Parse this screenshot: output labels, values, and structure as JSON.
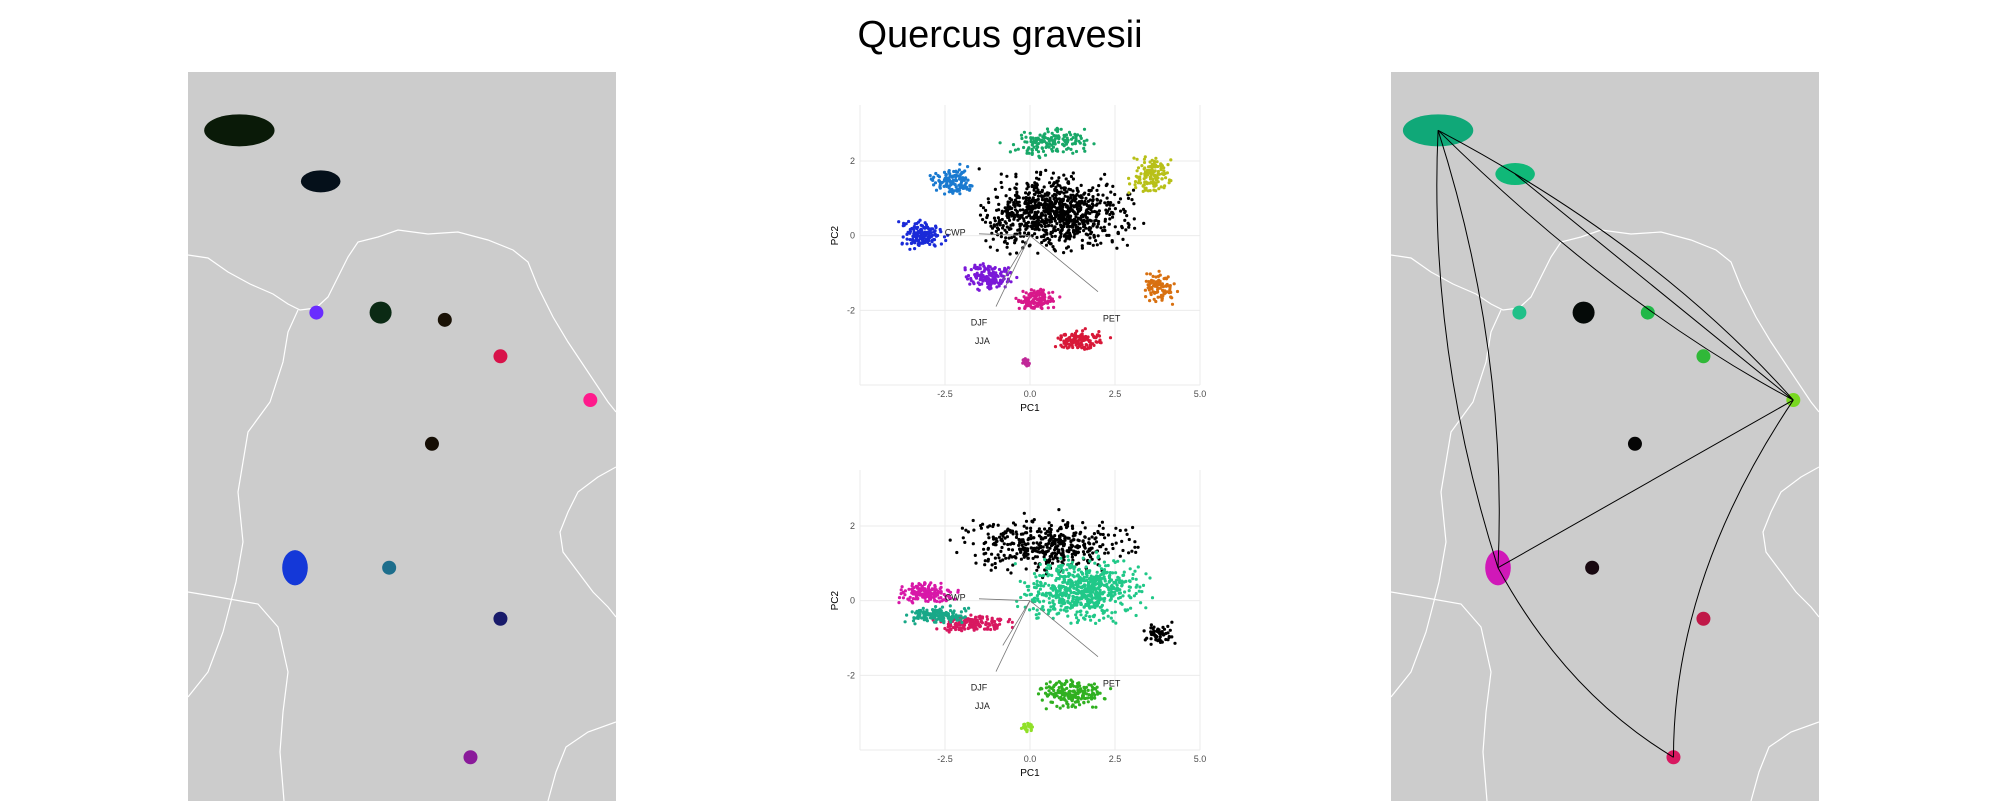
{
  "title": "Quercus gravesii",
  "colors": {
    "map_background": "#cccccc",
    "map_borders": "#ffffff",
    "plot_grid": "#ebebeb",
    "hull_line": "#000000"
  },
  "chart_data": [
    {
      "type": "map",
      "panel": "left",
      "description_colors": "RGB-coded climate colors per occurrence region",
      "sites": [
        {
          "lon": 0.12,
          "lat": 0.08,
          "color": "#0a1a08",
          "size": "large"
        },
        {
          "lon": 0.31,
          "lat": 0.15,
          "color": "#05101a",
          "size": "medium"
        },
        {
          "lon": 0.3,
          "lat": 0.33,
          "color": "#6a2cff",
          "size": "small"
        },
        {
          "lon": 0.45,
          "lat": 0.33,
          "color": "#0b2a14",
          "size": "medium"
        },
        {
          "lon": 0.6,
          "lat": 0.34,
          "color": "#1a1206",
          "size": "small"
        },
        {
          "lon": 0.73,
          "lat": 0.39,
          "color": "#d8124a",
          "size": "small"
        },
        {
          "lon": 0.94,
          "lat": 0.45,
          "color": "#ff1a8c",
          "size": "small"
        },
        {
          "lon": 0.57,
          "lat": 0.51,
          "color": "#150d04",
          "size": "small"
        },
        {
          "lon": 0.25,
          "lat": 0.68,
          "color": "#1438d8",
          "size": "large"
        },
        {
          "lon": 0.47,
          "lat": 0.68,
          "color": "#1d6e8c",
          "size": "small"
        },
        {
          "lon": 0.73,
          "lat": 0.75,
          "color": "#181a6a",
          "size": "small"
        },
        {
          "lon": 0.66,
          "lat": 0.94,
          "color": "#8a1a9a",
          "size": "small"
        }
      ]
    },
    {
      "type": "scatter",
      "panel": "pca-top",
      "xlabel": "PC1",
      "ylabel": "PC2",
      "xlim": [
        -5,
        5
      ],
      "ylim": [
        -4,
        3.5
      ],
      "xticks": [
        "-2.5",
        "0.0",
        "2.5",
        "5.0"
      ],
      "yticks": [
        "2",
        "0",
        "-2"
      ],
      "arrow_labels": [
        "CWP",
        "DJF",
        "JJA",
        "PET"
      ],
      "grid": true,
      "point_clusters": [
        {
          "cx": 0.8,
          "cy": 0.6,
          "rx": 2.8,
          "ry": 1.3,
          "color": "#000000",
          "n": 900
        },
        {
          "cx": -3.2,
          "cy": 0.0,
          "rx": 0.9,
          "ry": 0.5,
          "color": "#1a2ad8",
          "n": 150
        },
        {
          "cx": -2.3,
          "cy": 1.5,
          "rx": 0.8,
          "ry": 0.5,
          "color": "#1a7ad0",
          "n": 120
        },
        {
          "cx": -1.2,
          "cy": -1.1,
          "rx": 1.0,
          "ry": 0.45,
          "color": "#7a18d8",
          "n": 150
        },
        {
          "cx": 0.2,
          "cy": -1.7,
          "rx": 0.8,
          "ry": 0.4,
          "color": "#d8188a",
          "n": 140
        },
        {
          "cx": 1.5,
          "cy": -2.8,
          "rx": 1.0,
          "ry": 0.35,
          "color": "#d81838",
          "n": 130
        },
        {
          "cx": 3.6,
          "cy": 1.6,
          "rx": 0.9,
          "ry": 0.7,
          "color": "#b8c018",
          "n": 130
        },
        {
          "cx": 3.8,
          "cy": -1.4,
          "rx": 0.6,
          "ry": 0.5,
          "color": "#d87010",
          "n": 90
        },
        {
          "cx": 0.6,
          "cy": 2.5,
          "rx": 1.6,
          "ry": 0.5,
          "color": "#18a868",
          "n": 150
        },
        {
          "cx": -0.1,
          "cy": -3.4,
          "rx": 0.2,
          "ry": 0.2,
          "color": "#c02898",
          "n": 20
        }
      ]
    },
    {
      "type": "scatter",
      "panel": "pca-bottom",
      "xlabel": "PC1",
      "ylabel": "PC2",
      "xlim": [
        -5,
        5
      ],
      "ylim": [
        -4,
        3.5
      ],
      "xticks": [
        "-2.5",
        "0.0",
        "2.5",
        "5.0"
      ],
      "yticks": [
        "2",
        "0",
        "-2"
      ],
      "arrow_labels": [
        "CWP",
        "DJF",
        "JJA",
        "PET"
      ],
      "grid": true,
      "point_clusters": [
        {
          "cx": 0.5,
          "cy": 1.5,
          "rx": 3.0,
          "ry": 1.0,
          "color": "#000000",
          "n": 450
        },
        {
          "cx": 1.5,
          "cy": 0.3,
          "rx": 2.3,
          "ry": 1.1,
          "color": "#20c888",
          "n": 650
        },
        {
          "cx": -3.0,
          "cy": 0.2,
          "rx": 1.1,
          "ry": 0.35,
          "color": "#d818a8",
          "n": 160
        },
        {
          "cx": -1.7,
          "cy": -0.6,
          "rx": 1.4,
          "ry": 0.3,
          "color": "#d81860",
          "n": 160
        },
        {
          "cx": -2.8,
          "cy": -0.4,
          "rx": 1.2,
          "ry": 0.3,
          "color": "#18a888",
          "n": 150
        },
        {
          "cx": 1.3,
          "cy": -2.5,
          "rx": 1.3,
          "ry": 0.5,
          "color": "#30b020",
          "n": 180
        },
        {
          "cx": -0.1,
          "cy": -3.4,
          "rx": 0.25,
          "ry": 0.2,
          "color": "#90e028",
          "n": 25
        },
        {
          "cx": 3.8,
          "cy": -0.9,
          "rx": 0.6,
          "ry": 0.4,
          "color": "#000000",
          "n": 60
        }
      ]
    },
    {
      "type": "map",
      "panel": "right",
      "description_colors": "Shared-niche colors per occurrence region with connecting hull lines",
      "sites": [
        {
          "lon": 0.11,
          "lat": 0.08,
          "color": "#10a878",
          "size": "large"
        },
        {
          "lon": 0.29,
          "lat": 0.14,
          "color": "#10b878",
          "size": "medium"
        },
        {
          "lon": 0.3,
          "lat": 0.33,
          "color": "#20c088",
          "size": "small"
        },
        {
          "lon": 0.45,
          "lat": 0.33,
          "color": "#050a08",
          "size": "medium"
        },
        {
          "lon": 0.6,
          "lat": 0.33,
          "color": "#20b848",
          "size": "small"
        },
        {
          "lon": 0.73,
          "lat": 0.39,
          "color": "#30b838",
          "size": "small"
        },
        {
          "lon": 0.94,
          "lat": 0.45,
          "color": "#78d820",
          "size": "small"
        },
        {
          "lon": 0.57,
          "lat": 0.51,
          "color": "#050505",
          "size": "small"
        },
        {
          "lon": 0.25,
          "lat": 0.68,
          "color": "#d018b8",
          "size": "large"
        },
        {
          "lon": 0.47,
          "lat": 0.68,
          "color": "#180810",
          "size": "small"
        },
        {
          "lon": 0.73,
          "lat": 0.75,
          "color": "#c01848",
          "size": "small"
        },
        {
          "lon": 0.66,
          "lat": 0.94,
          "color": "#d81860",
          "size": "small"
        }
      ]
    }
  ]
}
